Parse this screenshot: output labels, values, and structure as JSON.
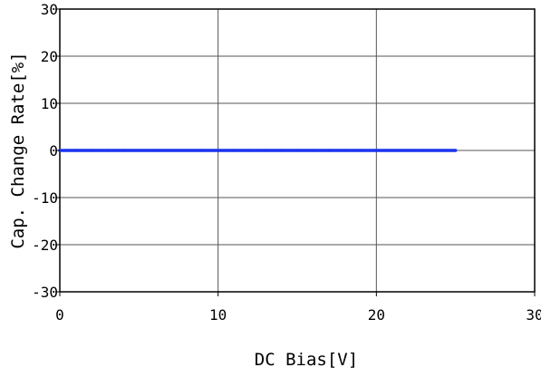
{
  "chart_data": {
    "type": "line",
    "title": "",
    "xlabel": "DC Bias[V]",
    "ylabel": "Cap. Change Rate[%]",
    "xlim": [
      0,
      30
    ],
    "ylim": [
      -30,
      30
    ],
    "x_ticks": [
      0,
      10,
      20,
      30
    ],
    "y_ticks": [
      30,
      20,
      10,
      0,
      -10,
      -20,
      -30
    ],
    "x_tick_labels": [
      "0",
      "10",
      "20",
      "30"
    ],
    "y_tick_labels": [
      "30",
      "20",
      "10",
      "0",
      "-10",
      "-20",
      "-30"
    ],
    "grid": true,
    "series": [
      {
        "color": "#1a33ee",
        "x": [
          0,
          1,
          2,
          3,
          4,
          5,
          6,
          7,
          8,
          9,
          10,
          11,
          12,
          13,
          14,
          15,
          16,
          17,
          18,
          19,
          20,
          21,
          22,
          23,
          24,
          25
        ],
        "y": [
          0,
          0,
          0,
          0,
          0,
          0,
          0,
          0,
          0,
          0,
          0,
          0,
          0,
          0,
          0,
          0,
          0,
          0,
          0,
          0,
          0,
          0,
          0,
          0,
          0,
          0
        ]
      }
    ]
  }
}
